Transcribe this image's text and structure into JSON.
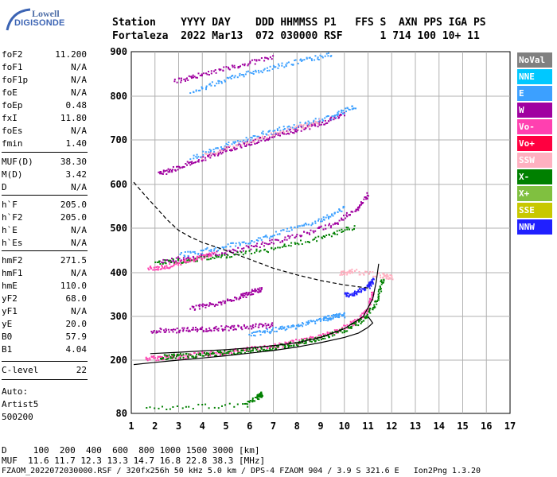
{
  "logo": {
    "line1": "Lowell",
    "line2": "DIGISONDE"
  },
  "header": {
    "line1": "Station    YYYY DAY    DDD HHMMSS P1   FFS S  AXN PPS IGA PS",
    "line2": "Fortaleza  2022 Mar13  072 030000 RSF      1 714 100 10+ 11"
  },
  "params": [
    {
      "k": "foF2",
      "v": "11.200"
    },
    {
      "k": "foF1",
      "v": "N/A"
    },
    {
      "k": "foF1p",
      "v": "N/A"
    },
    {
      "k": "foE",
      "v": "N/A"
    },
    {
      "k": "foEp",
      "v": "0.48"
    },
    {
      "k": "fxI",
      "v": "11.80"
    },
    {
      "k": "foEs",
      "v": "N/A"
    },
    {
      "k": "fmin",
      "v": "1.40"
    },
    {
      "k": "MUF(D)",
      "v": "38.30"
    },
    {
      "k": "M(D)",
      "v": "3.42"
    },
    {
      "k": "D",
      "v": "N/A"
    },
    {
      "k": "h`F",
      "v": "205.0"
    },
    {
      "k": "h`F2",
      "v": "205.0"
    },
    {
      "k": "h`E",
      "v": "N/A"
    },
    {
      "k": "h`Es",
      "v": "N/A"
    },
    {
      "k": "hmF2",
      "v": "271.5"
    },
    {
      "k": "hmF1",
      "v": "N/A"
    },
    {
      "k": "hmE",
      "v": "110.0"
    },
    {
      "k": "yF2",
      "v": "68.0"
    },
    {
      "k": "yF1",
      "v": "N/A"
    },
    {
      "k": "yE",
      "v": "20.0"
    },
    {
      "k": "B0",
      "v": "57.9"
    },
    {
      "k": "B1",
      "v": "4.04"
    },
    {
      "k": "C-level",
      "v": "22"
    }
  ],
  "auto": {
    "label": "Auto:",
    "name": "Artist5",
    "version": "500200"
  },
  "legend": [
    {
      "label": "NoVal",
      "color": "#808080"
    },
    {
      "label": "NNE",
      "color": "#00c8ff"
    },
    {
      "label": "E",
      "color": "#3ca0ff"
    },
    {
      "label": "W",
      "color": "#a000a0"
    },
    {
      "label": "Vo-",
      "color": "#ff40b0"
    },
    {
      "label": "Vo+",
      "color": "#ff0040"
    },
    {
      "label": "SSW",
      "color": "#ffb0c0"
    },
    {
      "label": "X-",
      "color": "#008000"
    },
    {
      "label": "X+",
      "color": "#80c040"
    },
    {
      "label": "SSE",
      "color": "#c8c800"
    },
    {
      "label": "NNW",
      "color": "#2020ff"
    }
  ],
  "footer": {
    "line1": "D     100  200  400  600  800 1000 1500 3000 [km]",
    "line2": "MUF  11.6 11.7 12.3 13.3 14.7 16.8 22.8 38.3 [MHz]",
    "line3": "FZAOM_2022072030000.RSF / 320fx256h 50 kHz 5.0 km / DPS-4 FZAOM 904 / 3.9 S 321.6 E   Ion2Png 1.3.20"
  },
  "chart_data": {
    "type": "scatter",
    "xlim": [
      1,
      17
    ],
    "ylim": [
      80,
      900
    ],
    "x_ticks": [
      1,
      2,
      3,
      4,
      5,
      6,
      7,
      8,
      9,
      10,
      11,
      12,
      13,
      14,
      15,
      16,
      17
    ],
    "y_ticks": [
      80,
      200,
      300,
      400,
      500,
      600,
      700,
      800,
      900
    ],
    "grid": true,
    "legend_position": "right",
    "traces": [
      {
        "name": "Vo-",
        "color": "#ff40b0",
        "points": [
          [
            1.6,
            205
          ],
          [
            2.5,
            208
          ],
          [
            3.5,
            212
          ],
          [
            4.5,
            217
          ],
          [
            5.5,
            223
          ],
          [
            6.5,
            230
          ],
          [
            7.5,
            238
          ],
          [
            8.5,
            250
          ],
          [
            9.5,
            265
          ],
          [
            10.5,
            290
          ],
          [
            11.0,
            320
          ],
          [
            11.2,
            360
          ]
        ]
      },
      {
        "name": "X-",
        "color": "#008000",
        "points": [
          [
            2.2,
            208
          ],
          [
            3.0,
            211
          ],
          [
            4.0,
            214
          ],
          [
            5.0,
            218
          ],
          [
            6.0,
            224
          ],
          [
            7.0,
            230
          ],
          [
            8.0,
            240
          ],
          [
            9.0,
            252
          ],
          [
            10.0,
            270
          ],
          [
            10.8,
            295
          ],
          [
            11.4,
            340
          ],
          [
            11.6,
            390
          ]
        ]
      },
      {
        "name": "E",
        "color": "#3ca0ff",
        "points": [
          [
            6.0,
            260
          ],
          [
            7.0,
            270
          ],
          [
            8.0,
            280
          ],
          [
            9.0,
            295
          ],
          [
            9.5,
            300
          ],
          [
            10.0,
            305
          ]
        ]
      },
      {
        "name": "W",
        "color": "#a000a0",
        "points": [
          [
            1.8,
            268
          ],
          [
            3.0,
            270
          ],
          [
            4.0,
            272
          ],
          [
            5.0,
            275
          ],
          [
            6.0,
            278
          ],
          [
            7.0,
            282
          ]
        ]
      },
      {
        "name": "NNW",
        "color": "#2020ff",
        "points": [
          [
            10.0,
            350
          ],
          [
            10.5,
            355
          ],
          [
            11.0,
            370
          ],
          [
            11.2,
            385
          ]
        ]
      },
      {
        "name": "SSW",
        "color": "#ffb0c0",
        "points": [
          [
            9.8,
            400
          ],
          [
            10.3,
            405
          ],
          [
            11.6,
            395
          ],
          [
            12.0,
            390
          ]
        ]
      },
      {
        "name": "W",
        "color": "#a000a0",
        "points": [
          [
            2.2,
            428
          ],
          [
            3.5,
            435
          ],
          [
            5.0,
            448
          ],
          [
            6.5,
            465
          ],
          [
            8.0,
            485
          ],
          [
            9.5,
            510
          ],
          [
            10.5,
            545
          ],
          [
            11.0,
            580
          ]
        ]
      },
      {
        "name": "E",
        "color": "#3ca0ff",
        "points": [
          [
            3.0,
            440
          ],
          [
            4.5,
            455
          ],
          [
            6.0,
            472
          ],
          [
            7.5,
            495
          ],
          [
            9.0,
            520
          ],
          [
            10.0,
            550
          ]
        ]
      },
      {
        "name": "X-",
        "color": "#008000",
        "points": [
          [
            2.0,
            425
          ],
          [
            3.5,
            430
          ],
          [
            5.0,
            440
          ],
          [
            7.0,
            455
          ],
          [
            9.0,
            480
          ],
          [
            10.5,
            505
          ]
        ]
      },
      {
        "name": "Vo-",
        "color": "#ff40b0",
        "points": [
          [
            1.7,
            410
          ],
          [
            2.5,
            415
          ],
          [
            3.5,
            430
          ],
          [
            4.5,
            445
          ]
        ]
      },
      {
        "name": "W",
        "color": "#a000a0",
        "points": [
          [
            2.1,
            625
          ],
          [
            3.0,
            640
          ],
          [
            4.0,
            660
          ],
          [
            5.0,
            680
          ],
          [
            6.0,
            695
          ],
          [
            7.0,
            710
          ],
          [
            8.0,
            725
          ],
          [
            9.0,
            740
          ],
          [
            10.0,
            760
          ]
        ]
      },
      {
        "name": "E",
        "color": "#3ca0ff",
        "points": [
          [
            3.5,
            660
          ],
          [
            5.0,
            690
          ],
          [
            6.5,
            715
          ],
          [
            8.0,
            735
          ],
          [
            9.5,
            755
          ],
          [
            10.5,
            780
          ]
        ]
      },
      {
        "name": "SSW",
        "color": "#ffb0c0",
        "points": [
          [
            4.0,
            665
          ],
          [
            6.0,
            700
          ],
          [
            8.0,
            730
          ],
          [
            9.0,
            745
          ]
        ]
      },
      {
        "name": "E",
        "color": "#3ca0ff",
        "points": [
          [
            3.5,
            810
          ],
          [
            5.0,
            840
          ],
          [
            6.5,
            860
          ],
          [
            8.0,
            880
          ],
          [
            9.5,
            895
          ]
        ]
      },
      {
        "name": "W",
        "color": "#a000a0",
        "points": [
          [
            2.8,
            835
          ],
          [
            4.0,
            850
          ],
          [
            5.5,
            870
          ],
          [
            7.0,
            890
          ]
        ]
      },
      {
        "name": "W",
        "color": "#a000a0",
        "points": [
          [
            3.5,
            320
          ],
          [
            4.5,
            330
          ],
          [
            5.5,
            345
          ],
          [
            6.0,
            355
          ],
          [
            6.5,
            365
          ]
        ]
      },
      {
        "name": "X-",
        "color": "#008000",
        "points": [
          [
            6.3,
            120
          ],
          [
            6.5,
            125
          ],
          [
            5.8,
            100
          ],
          [
            1.4,
            93
          ]
        ]
      }
    ],
    "lines": [
      {
        "style": "solid",
        "points": [
          [
            1.1,
            190
          ],
          [
            2.0,
            195
          ],
          [
            3.0,
            200
          ],
          [
            4.0,
            205
          ],
          [
            5.0,
            210
          ],
          [
            6.0,
            216
          ],
          [
            7.0,
            222
          ],
          [
            8.0,
            230
          ],
          [
            9.0,
            240
          ],
          [
            10.0,
            252
          ],
          [
            10.6,
            262
          ],
          [
            11.0,
            275
          ],
          [
            11.2,
            285
          ],
          [
            11.0,
            300
          ]
        ]
      },
      {
        "style": "solid",
        "points": [
          [
            1.8,
            215
          ],
          [
            3.0,
            218
          ],
          [
            4.0,
            221
          ],
          [
            5.0,
            224
          ],
          [
            6.0,
            228
          ],
          [
            7.0,
            233
          ],
          [
            8.0,
            240
          ],
          [
            9.0,
            252
          ],
          [
            10.0,
            272
          ],
          [
            10.8,
            300
          ],
          [
            11.2,
            340
          ],
          [
            11.35,
            380
          ],
          [
            11.45,
            420
          ]
        ]
      },
      {
        "style": "dashed",
        "points": [
          [
            1.1,
            605
          ],
          [
            1.5,
            580
          ],
          [
            2.0,
            550
          ],
          [
            2.5,
            520
          ],
          [
            3.0,
            495
          ],
          [
            3.5,
            480
          ],
          [
            4.0,
            468
          ],
          [
            5.0,
            450
          ],
          [
            6.0,
            430
          ],
          [
            7.0,
            410
          ],
          [
            8.0,
            395
          ],
          [
            9.0,
            382
          ],
          [
            10.0,
            372
          ],
          [
            11.0,
            365
          ]
        ]
      }
    ]
  }
}
